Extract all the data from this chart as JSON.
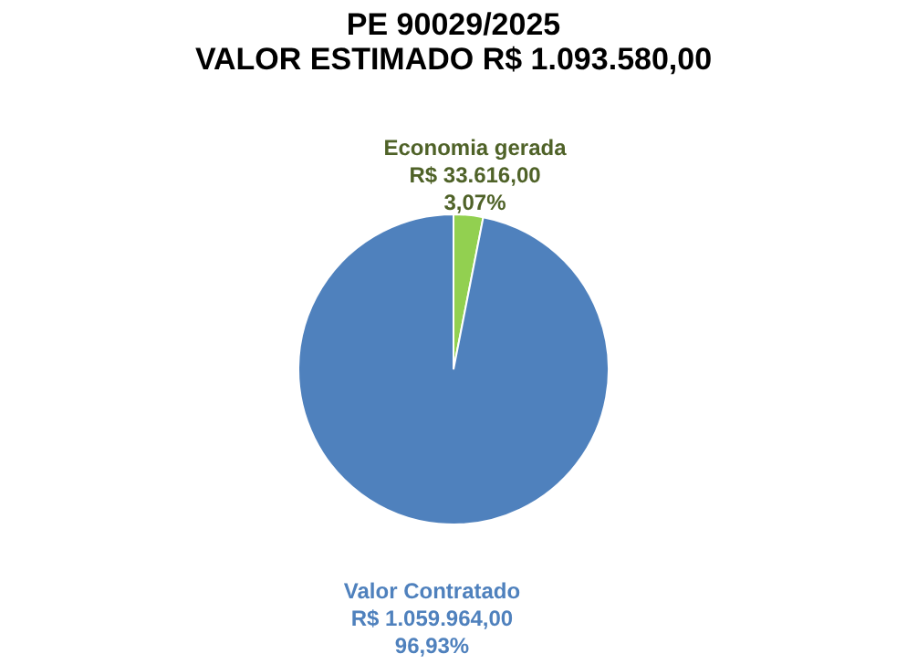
{
  "chart_data": {
    "type": "pie",
    "title": [
      "PE  90029/2025",
      "VALOR ESTIMADO R$ 1.093.580,00"
    ],
    "categories": [
      "Economia gerada",
      "Valor Contratado"
    ],
    "values": [
      33616,
      1059964
    ],
    "colors": [
      "#92d050",
      "#4f81bd"
    ],
    "value_labels": [
      "R$ 33.616,00\n3,07%",
      "R$ 1.059.964,00\n96,93%"
    ]
  }
}
